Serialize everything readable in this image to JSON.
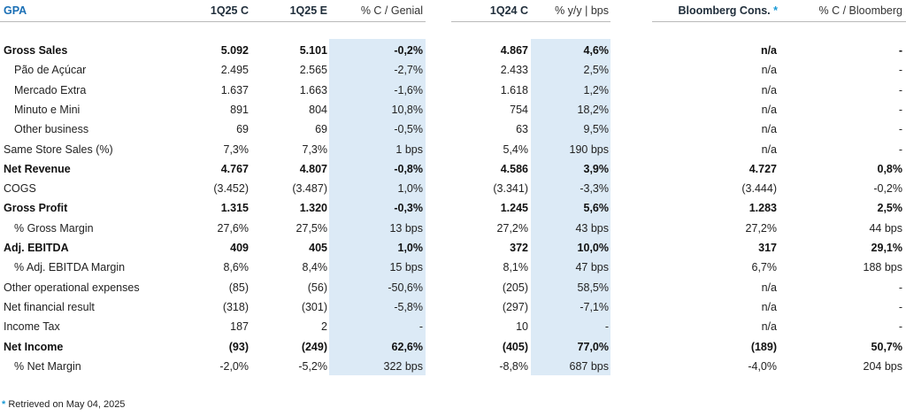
{
  "header": {
    "title": "GPA",
    "q125c": "1Q25 C",
    "q125e": "1Q25 E",
    "pct_genial": "% C / Genial",
    "q124c": "1Q24 C",
    "yoy": "% y/y | bps",
    "bloomberg": "Bloomberg Cons.",
    "bloomberg_star": "*",
    "pct_bloomberg": "% C / Bloomberg"
  },
  "rows": [
    {
      "label": "Gross Sales",
      "bold": true,
      "indent": false,
      "c": "5.092",
      "e": "5.101",
      "ce": "-0,2%",
      "ly": "4.867",
      "yoy": "4,6%",
      "bbg": "n/a",
      "bbg_pct": "-"
    },
    {
      "label": "Pão de Açúcar",
      "bold": false,
      "indent": true,
      "c": "2.495",
      "e": "2.565",
      "ce": "-2,7%",
      "ly": "2.433",
      "yoy": "2,5%",
      "bbg": "n/a",
      "bbg_pct": "-"
    },
    {
      "label": "Mercado Extra",
      "bold": false,
      "indent": true,
      "c": "1.637",
      "e": "1.663",
      "ce": "-1,6%",
      "ly": "1.618",
      "yoy": "1,2%",
      "bbg": "n/a",
      "bbg_pct": "-"
    },
    {
      "label": "Minuto e Mini",
      "bold": false,
      "indent": true,
      "c": "891",
      "e": "804",
      "ce": "10,8%",
      "ly": "754",
      "yoy": "18,2%",
      "bbg": "n/a",
      "bbg_pct": "-"
    },
    {
      "label": "Other business",
      "bold": false,
      "indent": true,
      "c": "69",
      "e": "69",
      "ce": "-0,5%",
      "ly": "63",
      "yoy": "9,5%",
      "bbg": "n/a",
      "bbg_pct": "-"
    },
    {
      "label": "Same Store Sales (%)",
      "bold": false,
      "indent": false,
      "c": "7,3%",
      "e": "7,3%",
      "ce": "1 bps",
      "ly": "5,4%",
      "yoy": "190 bps",
      "bbg": "n/a",
      "bbg_pct": "-"
    },
    {
      "label": "Net Revenue",
      "bold": true,
      "indent": false,
      "c": "4.767",
      "e": "4.807",
      "ce": "-0,8%",
      "ly": "4.586",
      "yoy": "3,9%",
      "bbg": "4.727",
      "bbg_pct": "0,8%"
    },
    {
      "label": "COGS",
      "bold": false,
      "indent": false,
      "c": "(3.452)",
      "e": "(3.487)",
      "ce": "1,0%",
      "ly": "(3.341)",
      "yoy": "-3,3%",
      "bbg": "(3.444)",
      "bbg_pct": "-0,2%"
    },
    {
      "label": "Gross Profit",
      "bold": true,
      "indent": false,
      "c": "1.315",
      "e": "1.320",
      "ce": "-0,3%",
      "ly": "1.245",
      "yoy": "5,6%",
      "bbg": "1.283",
      "bbg_pct": "2,5%"
    },
    {
      "label": "% Gross Margin",
      "bold": false,
      "indent": true,
      "c": "27,6%",
      "e": "27,5%",
      "ce": "13 bps",
      "ly": "27,2%",
      "yoy": "43 bps",
      "bbg": "27,2%",
      "bbg_pct": "44 bps"
    },
    {
      "label": "Adj. EBITDA",
      "bold": true,
      "indent": false,
      "c": "409",
      "e": "405",
      "ce": "1,0%",
      "ly": "372",
      "yoy": "10,0%",
      "bbg": "317",
      "bbg_pct": "29,1%"
    },
    {
      "label": "% Adj. EBITDA Margin",
      "bold": false,
      "indent": true,
      "c": "8,6%",
      "e": "8,4%",
      "ce": "15 bps",
      "ly": "8,1%",
      "yoy": "47 bps",
      "bbg": "6,7%",
      "bbg_pct": "188 bps"
    },
    {
      "label": "Other operational expenses",
      "bold": false,
      "indent": false,
      "c": "(85)",
      "e": "(56)",
      "ce": "-50,6%",
      "ly": "(205)",
      "yoy": "58,5%",
      "bbg": "n/a",
      "bbg_pct": "-"
    },
    {
      "label": "Net financial result",
      "bold": false,
      "indent": false,
      "c": "(318)",
      "e": "(301)",
      "ce": "-5,8%",
      "ly": "(297)",
      "yoy": "-7,1%",
      "bbg": "n/a",
      "bbg_pct": "-"
    },
    {
      "label": "Income Tax",
      "bold": false,
      "indent": false,
      "c": "187",
      "e": "2",
      "ce": "-",
      "ly": "10",
      "yoy": "-",
      "bbg": "n/a",
      "bbg_pct": "-"
    },
    {
      "label": "Net Income",
      "bold": true,
      "indent": false,
      "c": "(93)",
      "e": "(249)",
      "ce": "62,6%",
      "ly": "(405)",
      "yoy": "77,0%",
      "bbg": "(189)",
      "bbg_pct": "50,7%"
    },
    {
      "label": "% Net Margin",
      "bold": false,
      "indent": true,
      "c": "-2,0%",
      "e": "-5,2%",
      "ce": "322 bps",
      "ly": "-8,8%",
      "yoy": "687 bps",
      "bbg": "-4,0%",
      "bbg_pct": "204 bps"
    }
  ],
  "footnote": {
    "star": "*",
    "text": "Retrieved on May 04, 2025"
  },
  "colors": {
    "title": "#1a6fb5",
    "shade": "#dceaf6",
    "star": "#1a9ad6"
  }
}
